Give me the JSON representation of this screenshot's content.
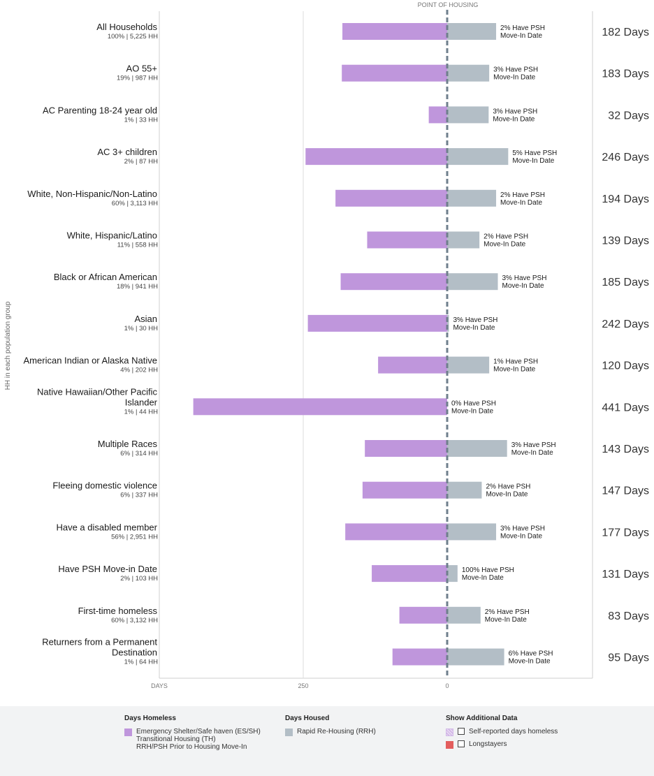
{
  "chart_data": {
    "type": "bar",
    "orientation": "horizontal-diverging",
    "top_label": "POINT OF HOUSING",
    "ylabel": "HH in each population group",
    "xlabel": "DAYS",
    "x_ticks": [
      500,
      250,
      0
    ],
    "x_tick_labels": [
      "DAYS",
      "250",
      "0"
    ],
    "xlim_homeless": [
      0,
      500
    ],
    "groups": [
      {
        "label": "All Households",
        "sub": "100% | 5,225 HH",
        "days_homeless": 182,
        "days_housed": 85,
        "psh_line1": "2% Have PSH",
        "psh_line2": "Move-In Date",
        "total": "182 Days"
      },
      {
        "label": "AO 55+",
        "sub": "19% | 987 HH",
        "days_homeless": 183,
        "days_housed": 73,
        "psh_line1": "3% Have PSH",
        "psh_line2": "Move-In Date",
        "total": "183 Days"
      },
      {
        "label": "AC Parenting 18-24 year old",
        "sub": "1% | 33 HH",
        "days_homeless": 32,
        "days_housed": 72,
        "psh_line1": "3% Have PSH",
        "psh_line2": "Move-In Date",
        "total": "32 Days"
      },
      {
        "label": "AC 3+ children",
        "sub": "2% | 87 HH",
        "days_homeless": 246,
        "days_housed": 106,
        "psh_line1": "5% Have PSH",
        "psh_line2": "Move-In Date",
        "total": "246 Days"
      },
      {
        "label": "White, Non-Hispanic/Non-Latino",
        "sub": "60% | 3,113 HH",
        "days_homeless": 194,
        "days_housed": 85,
        "psh_line1": "2% Have PSH",
        "psh_line2": "Move-In Date",
        "total": "194 Days"
      },
      {
        "label": "White, Hispanic/Latino",
        "sub": "11% | 558 HH",
        "days_homeless": 139,
        "days_housed": 56,
        "psh_line1": "2% Have PSH",
        "psh_line2": "Move-In Date",
        "total": "139 Days"
      },
      {
        "label": "Black or African American",
        "sub": "18% | 941 HH",
        "days_homeless": 185,
        "days_housed": 88,
        "psh_line1": "3% Have PSH",
        "psh_line2": "Move-In Date",
        "total": "185 Days"
      },
      {
        "label": "Asian",
        "sub": "1% | 30 HH",
        "days_homeless": 242,
        "days_housed": 3,
        "psh_line1": "3% Have PSH",
        "psh_line2": "Move-In Date",
        "total": "242 Days"
      },
      {
        "label": "American Indian or Alaska Native",
        "sub": "4% | 202 HH",
        "days_homeless": 120,
        "days_housed": 73,
        "psh_line1": "1% Have PSH",
        "psh_line2": "Move-In Date",
        "total": "120 Days"
      },
      {
        "label": "Native Hawaiian/Other Pacific\nIslander",
        "sub": "1% | 44 HH",
        "days_homeless": 441,
        "days_housed": 0,
        "psh_line1": "0% Have PSH",
        "psh_line2": "Move-In Date",
        "total": "441 Days"
      },
      {
        "label": "Multiple Races",
        "sub": "6% | 314 HH",
        "days_homeless": 143,
        "days_housed": 104,
        "psh_line1": "3% Have PSH",
        "psh_line2": "Move-In Date",
        "total": "143 Days"
      },
      {
        "label": "Fleeing domestic violence",
        "sub": "6% | 337 HH",
        "days_homeless": 147,
        "days_housed": 60,
        "psh_line1": "2% Have PSH",
        "psh_line2": "Move-In Date",
        "total": "147 Days"
      },
      {
        "label": "Have a disabled member",
        "sub": "56% | 2,951 HH",
        "days_homeless": 177,
        "days_housed": 85,
        "psh_line1": "3% Have PSH",
        "psh_line2": "Move-In Date",
        "total": "177 Days"
      },
      {
        "label": "Have PSH Move-in Date",
        "sub": "2% | 103 HH",
        "days_homeless": 131,
        "days_housed": 18,
        "psh_line1": "100% Have PSH",
        "psh_line2": "Move-In Date",
        "total": "131 Days"
      },
      {
        "label": "First-time homeless",
        "sub": "60% | 3,132 HH",
        "days_homeless": 83,
        "days_housed": 58,
        "psh_line1": "2% Have PSH",
        "psh_line2": "Move-In Date",
        "total": "83 Days"
      },
      {
        "label": "Returners from a Permanent\nDestination",
        "sub": "1% | 64 HH",
        "days_homeless": 95,
        "days_housed": 99,
        "psh_line1": "6% Have PSH",
        "psh_line2": "Move-In Date",
        "total": "95 Days"
      }
    ],
    "colors": {
      "homeless": "#bf96dc",
      "housed": "#b3bec6",
      "dashed_line": "#6f7f8c",
      "grid": "#dddddd"
    }
  },
  "legend": {
    "days_homeless": {
      "title": "Days Homeless",
      "line1": "Emergency Shelter/Safe haven (ES/SH)",
      "line2": "Transitional Housing (TH)",
      "line3": "RRH/PSH Prior to Housing Move-In"
    },
    "days_housed": {
      "title": "Days Housed",
      "item": "Rapid Re-Housing (RRH)"
    },
    "additional": {
      "title": "Show Additional Data",
      "self_reported": "Self-reported days homeless",
      "longstayers": "Longstayers"
    }
  }
}
